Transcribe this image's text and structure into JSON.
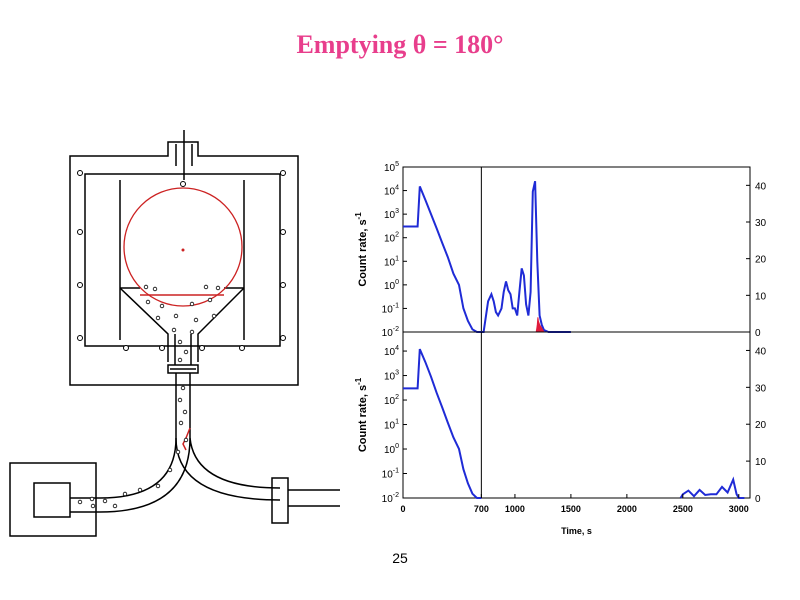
{
  "slide": {
    "title": "Emptying θ = 180°",
    "page_number": "25"
  },
  "colors": {
    "title": "#e83e8c",
    "data_line": "#1f2bd6",
    "highlight": "#e01b3c",
    "diagram_red": "#cc2222"
  },
  "chart_data": [
    {
      "type": "line",
      "panel": "top",
      "ylabel": "Count rate, s",
      "ylabel_sup": "-1",
      "y_scale": "log",
      "y_ticks": [
        {
          "base": "10",
          "exp": "5"
        },
        {
          "base": "10",
          "exp": "4"
        },
        {
          "base": "10",
          "exp": "3"
        },
        {
          "base": "10",
          "exp": "2"
        },
        {
          "base": "10",
          "exp": "1"
        },
        {
          "base": "10",
          "exp": "0"
        },
        {
          "base": "10",
          "exp": "-1"
        },
        {
          "base": "10",
          "exp": "-2"
        }
      ],
      "ylim": [
        0.01,
        100000
      ],
      "y2_ticks": [
        "40",
        "30",
        "20",
        "10",
        "0"
      ],
      "y2lim": [
        0,
        45
      ],
      "xlim": [
        0,
        3100
      ],
      "vline_x": 700,
      "series": [
        {
          "color": "#1f2bd6",
          "x": [
            0,
            130,
            150,
            200,
            250,
            300,
            350,
            400,
            450,
            500,
            540,
            580,
            620,
            660,
            700,
            720,
            760,
            790,
            810,
            830,
            850,
            880,
            900,
            920,
            940,
            960,
            980,
            1000,
            1020,
            1040,
            1060,
            1080,
            1100,
            1120,
            1140,
            1160,
            1180,
            1200,
            1220,
            1240,
            1260,
            1300,
            1350,
            1400,
            1450,
            1500
          ],
          "y": [
            300,
            300,
            15000,
            4000,
            1000,
            250,
            60,
            15,
            3,
            1,
            0.1,
            0.03,
            0.013,
            0.01,
            0.01,
            0.01,
            0.2,
            0.4,
            0.2,
            0.07,
            0.05,
            0.1,
            0.5,
            1.4,
            0.6,
            0.4,
            0.1,
            0.1,
            0.05,
            0.5,
            5,
            2.5,
            0.15,
            0.05,
            0.5,
            9000,
            25000,
            10,
            0.05,
            0.02,
            0.012,
            0.01,
            0.01,
            0.01,
            0.01,
            0.01
          ]
        }
      ],
      "y2_series": [
        {
          "color": "#e01b3c",
          "x": [
            1190,
            1195,
            1200,
            1205,
            1210,
            1220,
            1230,
            1240,
            1250,
            1260
          ],
          "y": [
            0,
            1,
            2,
            4,
            3,
            2,
            1.5,
            1,
            0.5,
            0
          ]
        }
      ]
    },
    {
      "type": "line",
      "panel": "bottom",
      "xlabel": "Time, s",
      "ylabel": "Count rate, s",
      "ylabel_sup": "-1",
      "y_scale": "log",
      "y_ticks": [
        {
          "base": "10",
          "exp": "4"
        },
        {
          "base": "10",
          "exp": "3"
        },
        {
          "base": "10",
          "exp": "2"
        },
        {
          "base": "10",
          "exp": "1"
        },
        {
          "base": "10",
          "exp": "0"
        },
        {
          "base": "10",
          "exp": "-1"
        },
        {
          "base": "10",
          "exp": "-2"
        }
      ],
      "ylim": [
        0.01,
        60000
      ],
      "y2_ticks": [
        "40",
        "30",
        "20",
        "10",
        "0"
      ],
      "y2lim": [
        0,
        45
      ],
      "x_ticks": [
        "0",
        "700",
        "1000",
        "1500",
        "2000",
        "2500",
        "3000"
      ],
      "xlim": [
        0,
        3100
      ],
      "vline_x": 700,
      "series": [
        {
          "color": "#1f2bd6",
          "x": [
            0,
            130,
            150,
            200,
            250,
            300,
            350,
            400,
            450,
            500,
            540,
            580,
            620,
            660,
            700
          ],
          "y": [
            300,
            300,
            12000,
            3500,
            900,
            200,
            50,
            12,
            3,
            1,
            0.15,
            0.04,
            0.015,
            0.01,
            0.01
          ]
        }
      ],
      "y2_series": [
        {
          "color": "#1f2bd6",
          "x": [
            2480,
            2500,
            2550,
            2600,
            2650,
            2700,
            2750,
            2800,
            2850,
            2900,
            2950,
            2980,
            3000,
            3050
          ],
          "y": [
            0,
            1,
            2,
            0.5,
            2.2,
            0.8,
            1,
            1,
            3,
            1.5,
            5,
            1,
            0,
            0
          ]
        }
      ]
    }
  ]
}
